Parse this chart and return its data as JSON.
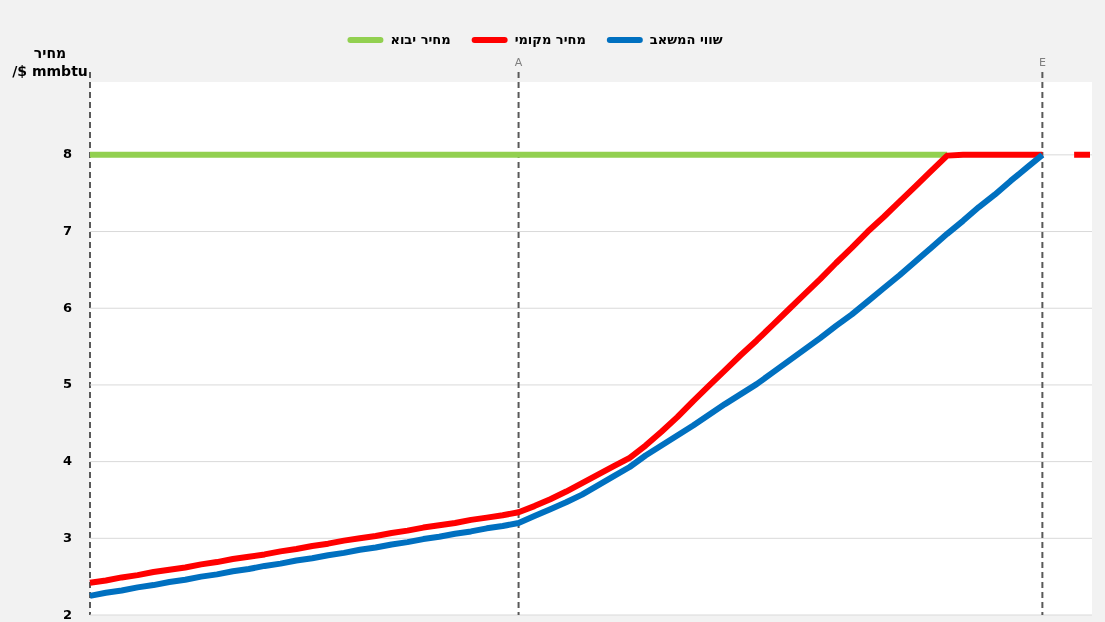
{
  "chart_data": {
    "type": "line",
    "ylabel": "מחיר\n/$ mmbtu",
    "categories": [
      null,
      null,
      null,
      null,
      null,
      null,
      null,
      null,
      null,
      null,
      null,
      null,
      null,
      null,
      null,
      null,
      null,
      null,
      null,
      null,
      null,
      null,
      null,
      null,
      null,
      null,
      null,
      "A",
      null,
      null,
      null,
      null,
      null,
      null,
      null,
      null,
      null,
      null,
      null,
      null,
      null,
      null,
      null,
      null,
      null,
      null,
      null,
      null,
      null,
      null,
      null,
      null,
      null,
      null,
      null,
      null,
      null,
      null,
      null,
      null,
      "E",
      null,
      null,
      null
    ],
    "ylim": [
      2,
      8.95
    ],
    "yticks": [
      2,
      3,
      4,
      5,
      6,
      7,
      8
    ],
    "grid": "y",
    "legend": "top",
    "line_style": "solid",
    "marker": "none",
    "series": [
      {
        "name": "שווי המשאב",
        "color": "#0070c0",
        "values": [
          2.25,
          2.29,
          2.32,
          2.36,
          2.39,
          2.43,
          2.46,
          2.5,
          2.53,
          2.57,
          2.6,
          2.64,
          2.67,
          2.71,
          2.74,
          2.78,
          2.81,
          2.85,
          2.88,
          2.92,
          2.95,
          2.99,
          3.02,
          3.06,
          3.09,
          3.13,
          3.16,
          3.2,
          3.29,
          3.38,
          3.47,
          3.57,
          3.69,
          3.81,
          3.93,
          4.08,
          4.21,
          4.34,
          4.47,
          4.61,
          4.75,
          4.88,
          5.01,
          5.16,
          5.31,
          5.46,
          5.61,
          5.77,
          5.92,
          6.09,
          6.26,
          6.43,
          6.61,
          6.79,
          6.97,
          7.14,
          7.32,
          7.48,
          7.66,
          7.83,
          8,
          null,
          null,
          null
        ]
      },
      {
        "name": "מחיר מקומי",
        "color": "#ff0000",
        "values": [
          2.42,
          2.45,
          2.49,
          2.52,
          2.56,
          2.59,
          2.62,
          2.66,
          2.69,
          2.73,
          2.76,
          2.79,
          2.83,
          2.86,
          2.9,
          2.93,
          2.97,
          3.0,
          3.03,
          3.07,
          3.1,
          3.14,
          3.17,
          3.2,
          3.24,
          3.27,
          3.3,
          3.34,
          3.42,
          3.51,
          3.61,
          3.72,
          3.83,
          3.94,
          4.05,
          4.21,
          4.39,
          4.58,
          4.79,
          4.99,
          5.19,
          5.39,
          5.58,
          5.78,
          5.98,
          6.18,
          6.38,
          6.59,
          6.79,
          7.0,
          7.19,
          7.39,
          7.59,
          7.79,
          7.99,
          8,
          8,
          8,
          8,
          8,
          8,
          null,
          8,
          8
        ]
      },
      {
        "name": "מחיר יבוא",
        "color": "#92d050",
        "values": [
          8,
          8,
          8,
          8,
          8,
          8,
          8,
          8,
          8,
          8,
          8,
          8,
          8,
          8,
          8,
          8,
          8,
          8,
          8,
          8,
          8,
          8,
          8,
          8,
          8,
          8,
          8,
          8,
          8,
          8,
          8,
          8,
          8,
          8,
          8,
          8,
          8,
          8,
          8,
          8,
          8,
          8,
          8,
          8,
          8,
          8,
          8,
          8,
          8,
          8,
          8,
          8,
          8,
          8,
          8,
          null,
          null,
          null,
          null,
          null,
          null,
          null,
          null,
          null
        ]
      }
    ],
    "ref_lines": [
      {
        "axis": "x",
        "value": "A",
        "color": "#595959",
        "line_style": "dashed"
      },
      {
        "axis": "x",
        "value": "E",
        "color": "#595959",
        "line_style": "dashed"
      }
    ]
  }
}
